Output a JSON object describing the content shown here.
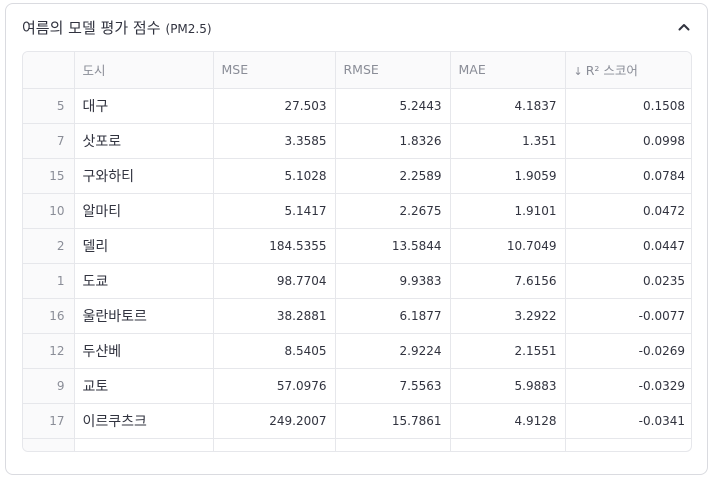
{
  "expander": {
    "title": "여름의 모델 평가 점수",
    "subtitle": "(PM2.5)"
  },
  "table": {
    "headers": {
      "index": "",
      "city": "도시",
      "mse": "MSE",
      "rmse": "RMSE",
      "mae": "MAE",
      "r2": "R² 스코어",
      "r2_sort": "↓"
    },
    "rows": [
      {
        "index": "5",
        "city": "대구",
        "mse": "27.503",
        "rmse": "5.2443",
        "mae": "4.1837",
        "r2": "0.1508"
      },
      {
        "index": "7",
        "city": "삿포로",
        "mse": "3.3585",
        "rmse": "1.8326",
        "mae": "1.351",
        "r2": "0.0998"
      },
      {
        "index": "15",
        "city": "구와하티",
        "mse": "5.1028",
        "rmse": "2.2589",
        "mae": "1.9059",
        "r2": "0.0784"
      },
      {
        "index": "10",
        "city": "알마티",
        "mse": "5.1417",
        "rmse": "2.2675",
        "mae": "1.9101",
        "r2": "0.0472"
      },
      {
        "index": "2",
        "city": "델리",
        "mse": "184.5355",
        "rmse": "13.5844",
        "mae": "10.7049",
        "r2": "0.0447"
      },
      {
        "index": "1",
        "city": "도쿄",
        "mse": "98.7704",
        "rmse": "9.9383",
        "mae": "7.6156",
        "r2": "0.0235"
      },
      {
        "index": "16",
        "city": "울란바토르",
        "mse": "38.2881",
        "rmse": "6.1877",
        "mae": "3.2922",
        "r2": "-0.0077"
      },
      {
        "index": "12",
        "city": "두샨베",
        "mse": "8.5405",
        "rmse": "2.9224",
        "mae": "2.1551",
        "r2": "-0.0269"
      },
      {
        "index": "9",
        "city": "교토",
        "mse": "57.0976",
        "rmse": "7.5563",
        "mae": "5.9883",
        "r2": "-0.0329"
      },
      {
        "index": "17",
        "city": "이르쿠츠크",
        "mse": "249.2007",
        "rmse": "15.7861",
        "mae": "4.9128",
        "r2": "-0.0341"
      }
    ]
  },
  "icons": {
    "collapse": "chevron-up-icon",
    "sort": "arrow-down-icon"
  }
}
